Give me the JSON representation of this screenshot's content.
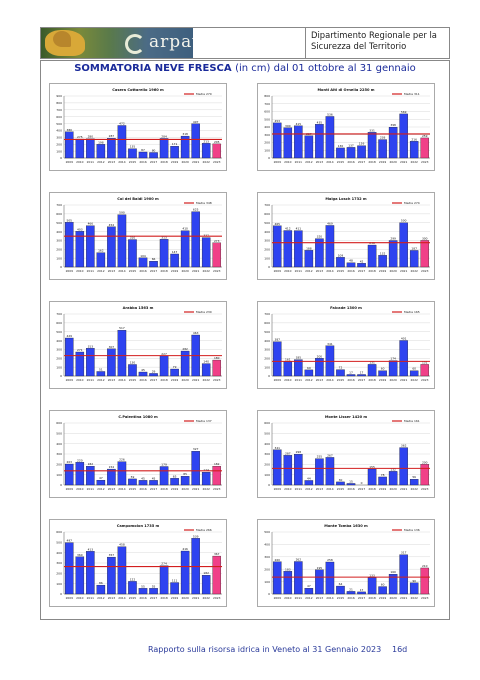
{
  "header": {
    "logo_text": "arpav",
    "department": "Dipartimento Regionale per la Sicurezza del Territorio"
  },
  "title": {
    "main": "SOMMATORIA NEVE FRESCA",
    "sub": "(in cm) dal 01 ottobre al 31 gennaio"
  },
  "colors": {
    "bar": "#2e43f0",
    "bar_last": "#f04088",
    "mean_line": "#d21e1e",
    "title": "#1a2a9a"
  },
  "chart_data": [
    {
      "type": "bar",
      "title": "Casera Cottarello 1960 m",
      "ylim": [
        0,
        900
      ],
      "yticks": [
        0,
        100,
        200,
        300,
        400,
        500,
        600,
        700,
        800,
        900
      ],
      "categories": [
        "2009",
        "2010",
        "2011",
        "2012",
        "2013",
        "2014",
        "2015",
        "2016",
        "2017",
        "2018",
        "2019",
        "2020",
        "2021",
        "2022",
        "2023"
      ],
      "values": [
        380,
        275,
        280,
        198,
        287,
        472,
        135,
        87,
        80,
        284,
        171,
        318,
        497,
        213,
        205
      ],
      "mean": {
        "name": "Media 270",
        "value": 270
      }
    },
    {
      "type": "bar",
      "title": "Monti Alti di Ornella 2250 m",
      "ylim": [
        0,
        800
      ],
      "yticks": [
        0,
        100,
        200,
        300,
        400,
        500,
        600,
        700,
        800
      ],
      "categories": [
        "2009",
        "2010",
        "2011",
        "2012",
        "2013",
        "2014",
        "2015",
        "2016",
        "2017",
        "2018",
        "2019",
        "2020",
        "2021",
        "2022",
        "2023"
      ],
      "values": [
        453,
        390,
        415,
        287,
        435,
        536,
        130,
        137,
        159,
        331,
        238,
        398,
        569,
        216,
        259
      ],
      "mean": {
        "name": "Media 311",
        "value": 311
      }
    },
    {
      "type": "bar",
      "title": "Col dei Baldi 1900 m",
      "ylim": [
        0,
        700
      ],
      "yticks": [
        0,
        100,
        200,
        300,
        400,
        500,
        600,
        700
      ],
      "categories": [
        "2009",
        "2010",
        "2011",
        "2012",
        "2013",
        "2014",
        "2015",
        "2016",
        "2017",
        "2018",
        "2019",
        "2020",
        "2021",
        "2022",
        "2023"
      ],
      "values": [
        505,
        403,
        466,
        162,
        454,
        590,
        310,
        104,
        66,
        313,
        147,
        410,
        625,
        332,
        273
      ],
      "mean": {
        "name": "Media 348",
        "value": 348
      }
    },
    {
      "type": "bar",
      "title": "Malga Losch 1732 m",
      "ylim": [
        0,
        700
      ],
      "yticks": [
        0,
        100,
        200,
        300,
        400,
        500,
        600,
        700
      ],
      "categories": [
        "2009",
        "2010",
        "2011",
        "2012",
        "2013",
        "2014",
        "2015",
        "2016",
        "2017",
        "2018",
        "2019",
        "2020",
        "2021",
        "2022",
        "2023"
      ],
      "values": [
        465,
        412,
        411,
        188,
        320,
        469,
        109,
        48,
        42,
        248,
        132,
        299,
        500,
        187,
        300
      ],
      "mean": {
        "name": "Media 274",
        "value": 274
      }
    },
    {
      "type": "bar",
      "title": "Arabba 1563 m",
      "ylim": [
        0,
        700
      ],
      "yticks": [
        0,
        100,
        200,
        300,
        400,
        500,
        600,
        700
      ],
      "categories": [
        "2009",
        "2010",
        "2011",
        "2012",
        "2013",
        "2014",
        "2015",
        "2016",
        "2017",
        "2018",
        "2019",
        "2020",
        "2021",
        "2022",
        "2023"
      ],
      "values": [
        429,
        271,
        313,
        51,
        307,
        517,
        130,
        45,
        29,
        227,
        79,
        282,
        463,
        140,
        180
      ],
      "mean": {
        "name": "Media 230",
        "value": 230
      }
    },
    {
      "type": "bar",
      "title": "Falcade 1300 m",
      "ylim": [
        0,
        700
      ],
      "yticks": [
        0,
        100,
        200,
        300,
        400,
        500,
        600,
        700
      ],
      "categories": [
        "2009",
        "2010",
        "2011",
        "2012",
        "2013",
        "2014",
        "2015",
        "2016",
        "2017",
        "2018",
        "2019",
        "2020",
        "2021",
        "2022",
        "2023"
      ],
      "values": [
        387,
        161,
        185,
        69,
        200,
        341,
        72,
        17,
        17,
        131,
        60,
        174,
        401,
        60,
        131
      ],
      "mean": {
        "name": "Media 165",
        "value": 165
      }
    },
    {
      "type": "bar",
      "title": "C.Palentina 1080 m",
      "ylim": [
        0,
        600
      ],
      "yticks": [
        0,
        100,
        200,
        300,
        400,
        500,
        600
      ],
      "categories": [
        "2009",
        "2010",
        "2011",
        "2012",
        "2013",
        "2014",
        "2015",
        "2016",
        "2017",
        "2018",
        "2019",
        "2020",
        "2021",
        "2022",
        "2023"
      ],
      "values": [
        203,
        220,
        182,
        47,
        154,
        226,
        59,
        45,
        45,
        179,
        65,
        85,
        327,
        124,
        182
      ],
      "mean": {
        "name": "Media 137",
        "value": 137
      }
    },
    {
      "type": "bar",
      "title": "Monte Lisser 1420 m",
      "ylim": [
        0,
        600
      ],
      "yticks": [
        0,
        100,
        200,
        300,
        400,
        500,
        600
      ],
      "categories": [
        "2009",
        "2010",
        "2011",
        "2012",
        "2013",
        "2014",
        "2015",
        "2016",
        "2017",
        "2018",
        "2019",
        "2020",
        "2021",
        "2022",
        "2023"
      ],
      "values": [
        341,
        287,
        298,
        44,
        255,
        267,
        30,
        15,
        0,
        155,
        78,
        132,
        362,
        56,
        200
      ],
      "mean": {
        "name": "Media 161",
        "value": 161
      }
    },
    {
      "type": "bar",
      "title": "Campomolon 1735 m",
      "ylim": [
        0,
        600
      ],
      "yticks": [
        0,
        100,
        200,
        300,
        400,
        500,
        600
      ],
      "categories": [
        "2009",
        "2010",
        "2011",
        "2012",
        "2013",
        "2014",
        "2015",
        "2016",
        "2017",
        "2018",
        "2019",
        "2020",
        "2021",
        "2022",
        "2023"
      ],
      "values": [
        497,
        360,
        413,
        86,
        357,
        458,
        122,
        55,
        55,
        274,
        111,
        416,
        539,
        182,
        367
      ],
      "mean": {
        "name": "Media 266",
        "value": 266
      }
    },
    {
      "type": "bar",
      "title": "Monte Tomba 1630 m",
      "ylim": [
        0,
        500
      ],
      "yticks": [
        0,
        100,
        200,
        300,
        400,
        500
      ],
      "categories": [
        "2009",
        "2010",
        "2011",
        "2012",
        "2013",
        "2014",
        "2015",
        "2016",
        "2017",
        "2018",
        "2019",
        "2020",
        "2021",
        "2022",
        "2023"
      ],
      "values": [
        260,
        183,
        262,
        47,
        195,
        258,
        64,
        21,
        17,
        133,
        60,
        160,
        317,
        90,
        210
      ],
      "mean": {
        "name": "Media 136",
        "value": 136
      }
    }
  ],
  "footer": {
    "text": "Rapporto sulla risorsa idrica in Veneto al 31 Gennaio 2023",
    "page": "16d"
  }
}
